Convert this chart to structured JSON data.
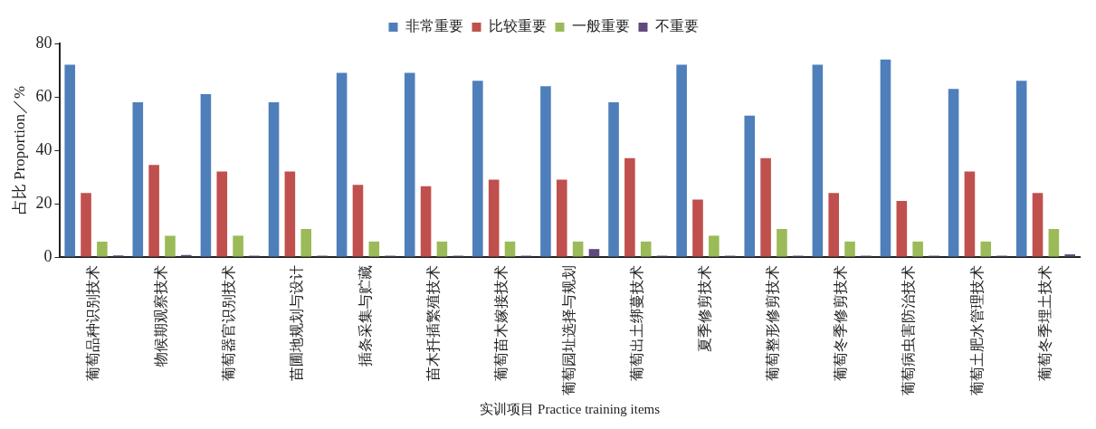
{
  "chart_data": {
    "type": "bar",
    "xlabel": "实训项目 Practice training items",
    "ylabel": "占比 Proportion／%",
    "categories": [
      "葡萄品种识别技术",
      "物候期观察技术",
      "葡萄器官识别技术",
      "苗圃地规划与设计",
      "插条采集与贮藏",
      "苗木扦插繁殖技术",
      "葡萄苗木嫁接技术",
      "葡萄园址选择与规划",
      "葡萄出土绑蔓技术",
      "夏季修剪技术",
      "葡萄整形修剪技术",
      "葡萄冬季修剪技术",
      "葡萄病虫害防治技术",
      "葡萄土肥水管理技术",
      "葡萄冬季埋土技术"
    ],
    "series": [
      {
        "name": "非常重要",
        "color": "#4f7fba",
        "values": [
          72,
          58,
          61,
          58,
          69,
          69,
          66,
          64,
          58,
          72,
          53,
          72,
          74,
          63,
          66
        ]
      },
      {
        "name": "比较重要",
        "color": "#c0504d",
        "values": [
          24,
          34.5,
          32,
          32,
          27,
          26.5,
          29,
          29,
          37,
          21.5,
          37,
          24,
          21,
          32,
          24
        ]
      },
      {
        "name": "一般重要",
        "color": "#9bbb59",
        "values": [
          5.8,
          8,
          8,
          10.5,
          5.8,
          5.8,
          5.8,
          5.8,
          5.8,
          8,
          10.5,
          5.8,
          5.8,
          5.8,
          10.5
        ]
      },
      {
        "name": "不重要",
        "color": "#604a7b",
        "values": [
          0.6,
          0.8,
          0.5,
          0.5,
          0.5,
          0.5,
          0.5,
          3,
          0.5,
          0.5,
          0.5,
          0.5,
          0.5,
          0.5,
          1
        ]
      }
    ],
    "ylim": [
      0,
      80
    ],
    "yticks": [
      0,
      20,
      40,
      60,
      80
    ],
    "grid": false,
    "legend": "top"
  }
}
